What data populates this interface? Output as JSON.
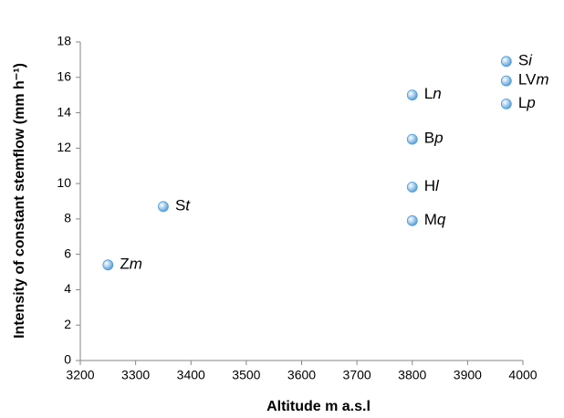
{
  "chart_data": {
    "type": "scatter",
    "x_label": "Altitude m a.s.l",
    "y_label": "Intensity of constant stemflow (mm h⁻¹)",
    "color": "#4f9bd8",
    "points": [
      {
        "label": "Zm",
        "x": 3250,
        "y": 5.4
      },
      {
        "label": "St",
        "x": 3350,
        "y": 8.7
      },
      {
        "label": "Ln",
        "x": 3800,
        "y": 15.0
      },
      {
        "label": "Bp",
        "x": 3800,
        "y": 12.5
      },
      {
        "label": "Hl",
        "x": 3800,
        "y": 9.8
      },
      {
        "label": "Mq",
        "x": 3800,
        "y": 7.9
      },
      {
        "label": "Si",
        "x": 3970,
        "y": 16.9
      },
      {
        "label": "LVm",
        "x": 3970,
        "y": 15.8
      },
      {
        "label": "Lp",
        "x": 3970,
        "y": 14.5
      }
    ],
    "xlim": [
      3200,
      4000
    ],
    "xticks": [
      3200,
      3300,
      3400,
      3500,
      3600,
      3700,
      3800,
      3900,
      4000
    ],
    "ylim": [
      0,
      18
    ],
    "yticks": [
      0,
      2,
      4,
      6,
      8,
      10,
      12,
      14,
      16,
      18
    ],
    "grid": false
  }
}
